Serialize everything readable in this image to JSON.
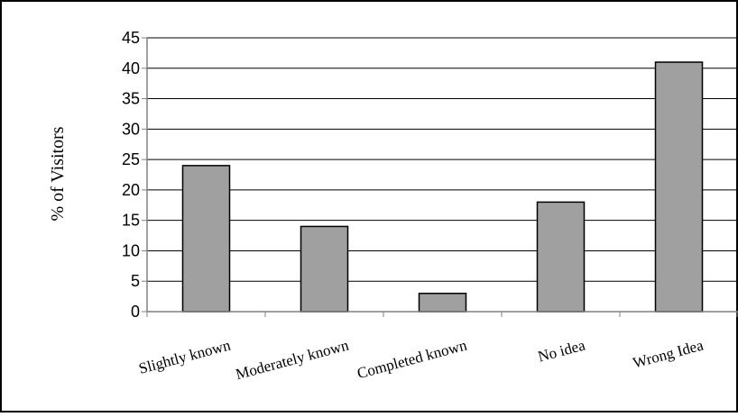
{
  "chart_data": {
    "type": "bar",
    "title": "",
    "xlabel": "",
    "ylabel": "% of Visitors",
    "categories": [
      "Slightly known",
      "Moderately known",
      "Completed known",
      "No idea",
      "Wrong Idea"
    ],
    "values": [
      24,
      14,
      3,
      18,
      41
    ],
    "ylim": [
      0,
      45
    ],
    "yticks": [
      "0",
      "5",
      "10",
      "15",
      "20",
      "25",
      "30",
      "35",
      "40",
      "45"
    ],
    "grid": true,
    "legend": "none",
    "colors": {
      "bar_fill": "#a0a0a0",
      "bar_stroke": "#000000",
      "grid": "#000000",
      "frame": "#000000",
      "axis": "#808080",
      "background": "#ffffff"
    }
  }
}
